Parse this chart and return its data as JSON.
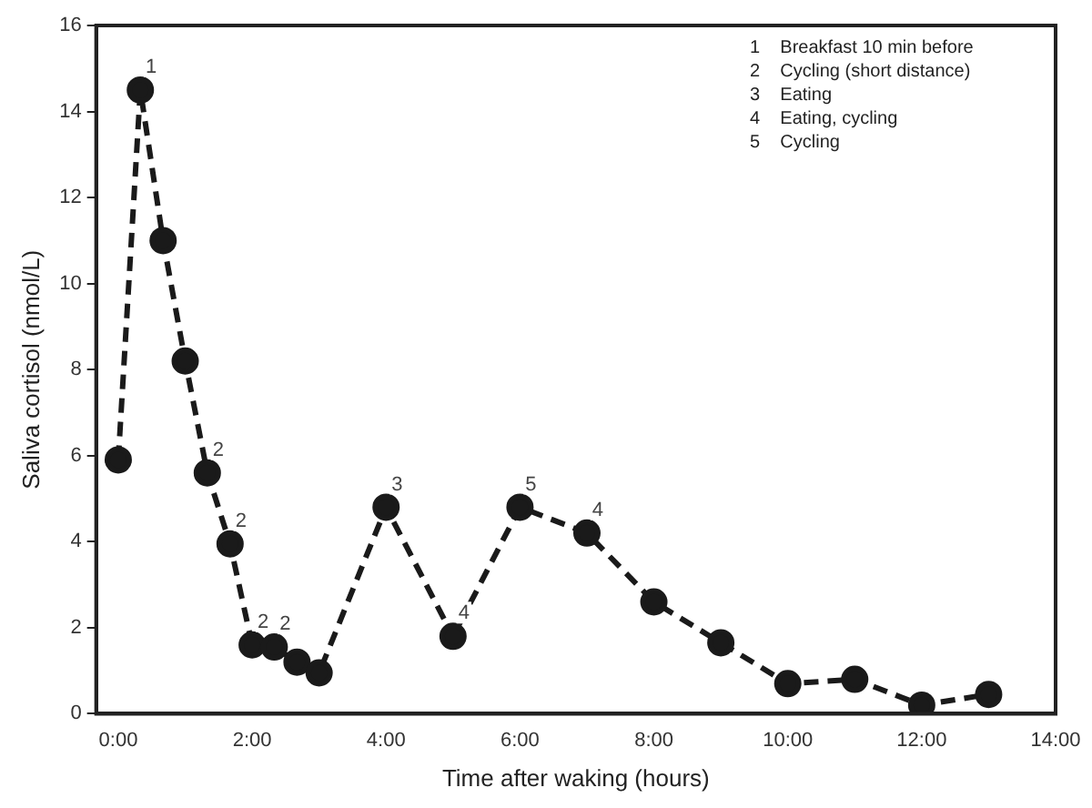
{
  "chart_data": {
    "type": "line",
    "xlabel": "Time after waking (hours)",
    "ylabel": "Saliva cortisol (nmol/L)",
    "x": [
      0,
      0.33,
      0.67,
      1,
      1.33,
      1.67,
      2,
      2.33,
      2.67,
      3,
      4,
      5,
      6,
      7,
      8,
      9,
      10,
      11,
      12,
      13
    ],
    "series": [
      {
        "color": "#1a1a1a",
        "values": [
          5.9,
          14.5,
          11,
          8.2,
          5.6,
          3.95,
          1.6,
          1.55,
          1.2,
          0.95,
          4.8,
          1.8,
          4.8,
          4.2,
          2.6,
          1.65,
          0.7,
          0.8,
          0.2,
          0.45
        ]
      }
    ],
    "xlim": [
      -0.33,
      14
    ],
    "xticks": [
      {
        "value": 0,
        "label": "0:00"
      },
      {
        "value": 2,
        "label": "2:00"
      },
      {
        "value": 4,
        "label": "4:00"
      },
      {
        "value": 6,
        "label": "6:00"
      },
      {
        "value": 8,
        "label": "8:00"
      },
      {
        "value": 10,
        "label": "10:00"
      },
      {
        "value": 12,
        "label": "12:00"
      },
      {
        "value": 14,
        "label": "14:00"
      }
    ],
    "ylim": [
      0,
      16
    ],
    "yticks": [
      0,
      2,
      4,
      6,
      8,
      10,
      12,
      14,
      16
    ],
    "marker": "circle",
    "line_style": "dashed",
    "grid": false,
    "legend": false,
    "annotations": [
      {
        "text": "1",
        "x": 0.33,
        "y": 14.5
      },
      {
        "text": "2",
        "x": 1.33,
        "y": 5.6
      },
      {
        "text": "2",
        "x": 1.67,
        "y": 3.95
      },
      {
        "text": "2",
        "x": 2,
        "y": 1.6
      },
      {
        "text": "2",
        "x": 2.33,
        "y": 1.55
      },
      {
        "text": "3",
        "x": 4,
        "y": 4.8
      },
      {
        "text": "4",
        "x": 5,
        "y": 1.8
      },
      {
        "text": "5",
        "x": 6,
        "y": 4.8
      },
      {
        "text": "4",
        "x": 7,
        "y": 4.2
      },
      "1    Breakfast 10 min before",
      "2    Cycling (short distance)",
      "3    Eating",
      "4    Eating, cycling",
      "5    Cycling"
    ]
  }
}
